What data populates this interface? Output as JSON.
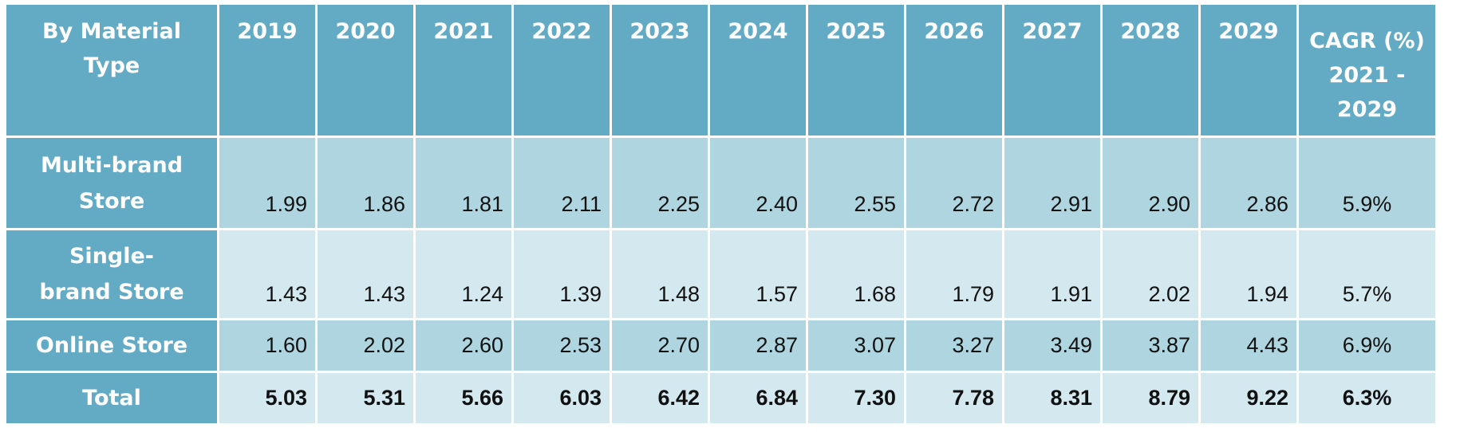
{
  "header": {
    "label": "By Material Type",
    "years": [
      "2019",
      "2020",
      "2021",
      "2022",
      "2023",
      "2024",
      "2025",
      "2026",
      "2027",
      "2028",
      "2029"
    ],
    "cagr_line1": "CAGR (%)",
    "cagr_line2": "2021 -",
    "cagr_line3": "2029"
  },
  "rows": [
    {
      "label_line1": "Multi-brand",
      "label_line2": "Store",
      "values": [
        "1.99",
        "1.86",
        "1.81",
        "2.11",
        "2.25",
        "2.40",
        "2.55",
        "2.72",
        "2.91",
        "2.90",
        "2.86"
      ],
      "cagr": "5.9%"
    },
    {
      "label_line1": "Single-",
      "label_line2": "brand Store",
      "values": [
        "1.43",
        "1.43",
        "1.24",
        "1.39",
        "1.48",
        "1.57",
        "1.68",
        "1.79",
        "1.91",
        "2.02",
        "1.94"
      ],
      "cagr": "5.7%"
    },
    {
      "label_line1": "Online Store",
      "values": [
        "1.60",
        "2.02",
        "2.60",
        "2.53",
        "2.70",
        "2.87",
        "3.07",
        "3.27",
        "3.49",
        "3.87",
        "4.43"
      ],
      "cagr": "6.9%"
    },
    {
      "label_line1": "Total",
      "values": [
        "5.03",
        "5.31",
        "5.66",
        "6.03",
        "6.42",
        "6.84",
        "7.30",
        "7.78",
        "8.31",
        "8.79",
        "9.22"
      ],
      "cagr": "6.3%"
    }
  ],
  "colors": {
    "header_bg": "#63aac5",
    "row_dark": "#afd6e0",
    "row_light": "#d4e8ef",
    "header_text": "#ffffff",
    "value_text": "#111111"
  },
  "chart_data": {
    "type": "table",
    "columns": [
      "By Material Type",
      "2019",
      "2020",
      "2021",
      "2022",
      "2023",
      "2024",
      "2025",
      "2026",
      "2027",
      "2028",
      "2029",
      "CAGR (%) 2021 - 2029"
    ],
    "rows": [
      [
        "Multi-brand Store",
        1.99,
        1.86,
        1.81,
        2.11,
        2.25,
        2.4,
        2.55,
        2.72,
        2.91,
        2.9,
        2.86,
        "5.9%"
      ],
      [
        "Single-brand Store",
        1.43,
        1.43,
        1.24,
        1.39,
        1.48,
        1.57,
        1.68,
        1.79,
        1.91,
        2.02,
        1.94,
        "5.7%"
      ],
      [
        "Online Store",
        1.6,
        2.02,
        2.6,
        2.53,
        2.7,
        2.87,
        3.07,
        3.27,
        3.49,
        3.87,
        4.43,
        "6.9%"
      ],
      [
        "Total",
        5.03,
        5.31,
        5.66,
        6.03,
        6.42,
        6.84,
        7.3,
        7.78,
        8.31,
        8.79,
        9.22,
        "6.3%"
      ]
    ]
  }
}
